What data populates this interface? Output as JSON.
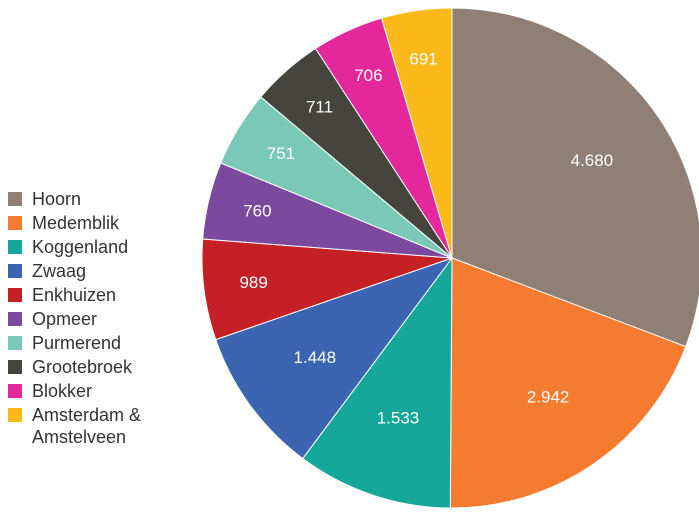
{
  "chart_data": {
    "type": "pie",
    "categories": [
      "Hoorn",
      "Medemblik",
      "Koggenland",
      "Zwaag",
      "Enkhuizen",
      "Opmeer",
      "Purmerend",
      "Grootebroek",
      "Blokker",
      "Amsterdam & Amstelveen"
    ],
    "values": [
      4680,
      2942,
      1533,
      1448,
      989,
      760,
      751,
      711,
      706,
      691
    ],
    "value_labels": [
      "4.680",
      "2.942",
      "1.533",
      "1.448",
      "989",
      "760",
      "751",
      "711",
      "706",
      "691"
    ],
    "colors": [
      "#8f7f74",
      "#f47b30",
      "#15a89a",
      "#3b65b0",
      "#c42026",
      "#7b4a9e",
      "#79c9b6",
      "#46443e",
      "#e4279b",
      "#fbb91a"
    ],
    "legend": "left"
  }
}
